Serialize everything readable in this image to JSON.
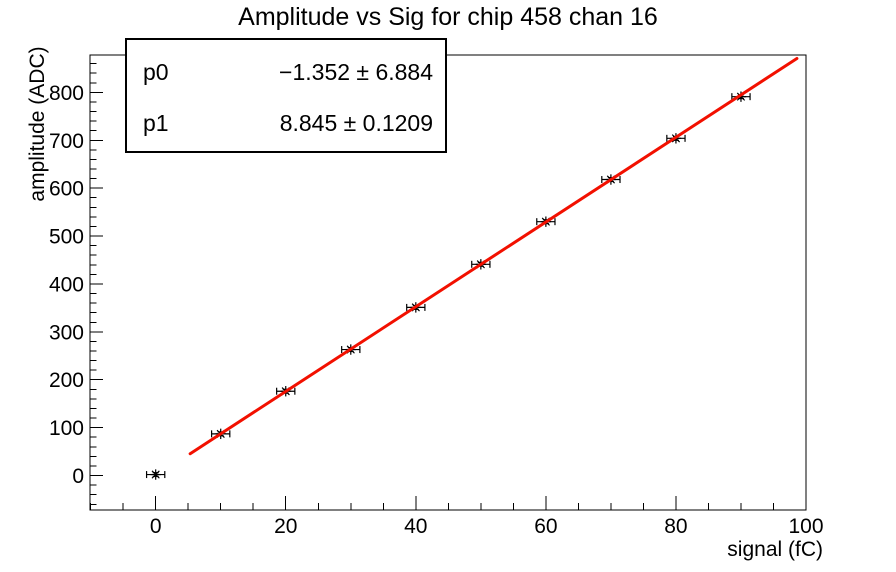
{
  "chart_data": {
    "type": "scatter",
    "title": "Amplitude vs Sig for chip 458 chan 16",
    "xlabel": "signal (fC)",
    "ylabel": "amplitude (ADC)",
    "xlim": [
      -10.1,
      100
    ],
    "ylim": [
      -72,
      878
    ],
    "x_major_ticks": [
      0,
      20,
      40,
      60,
      80,
      100
    ],
    "x_minor_step": 5,
    "y_major_ticks": [
      0,
      100,
      200,
      300,
      400,
      500,
      600,
      700,
      800
    ],
    "y_minor_step": 20,
    "grid": false,
    "legend_position": "none",
    "points": {
      "x": [
        0,
        10,
        20,
        30,
        40,
        50,
        60,
        70,
        80,
        90
      ],
      "y": [
        2,
        87,
        176,
        263,
        351,
        441,
        530,
        618,
        704,
        791
      ],
      "x_err": 1.4,
      "y_err": 4,
      "marker": "asterisk",
      "color": "#000000"
    },
    "fit_line": {
      "p0": -1.352,
      "p1": 8.845,
      "x_start": 5.3,
      "x_end": 98.6,
      "color": "#f21000",
      "width": 3
    }
  },
  "stats_box": {
    "rows": [
      {
        "label": "p0",
        "value": "−1.352 ± 6.884"
      },
      {
        "label": "p1",
        "value": "8.845 ± 0.1209"
      }
    ]
  },
  "colors": {
    "axis": "#000000",
    "background": "#ffffff",
    "fit_line": "#f21000",
    "marker": "#000000"
  }
}
